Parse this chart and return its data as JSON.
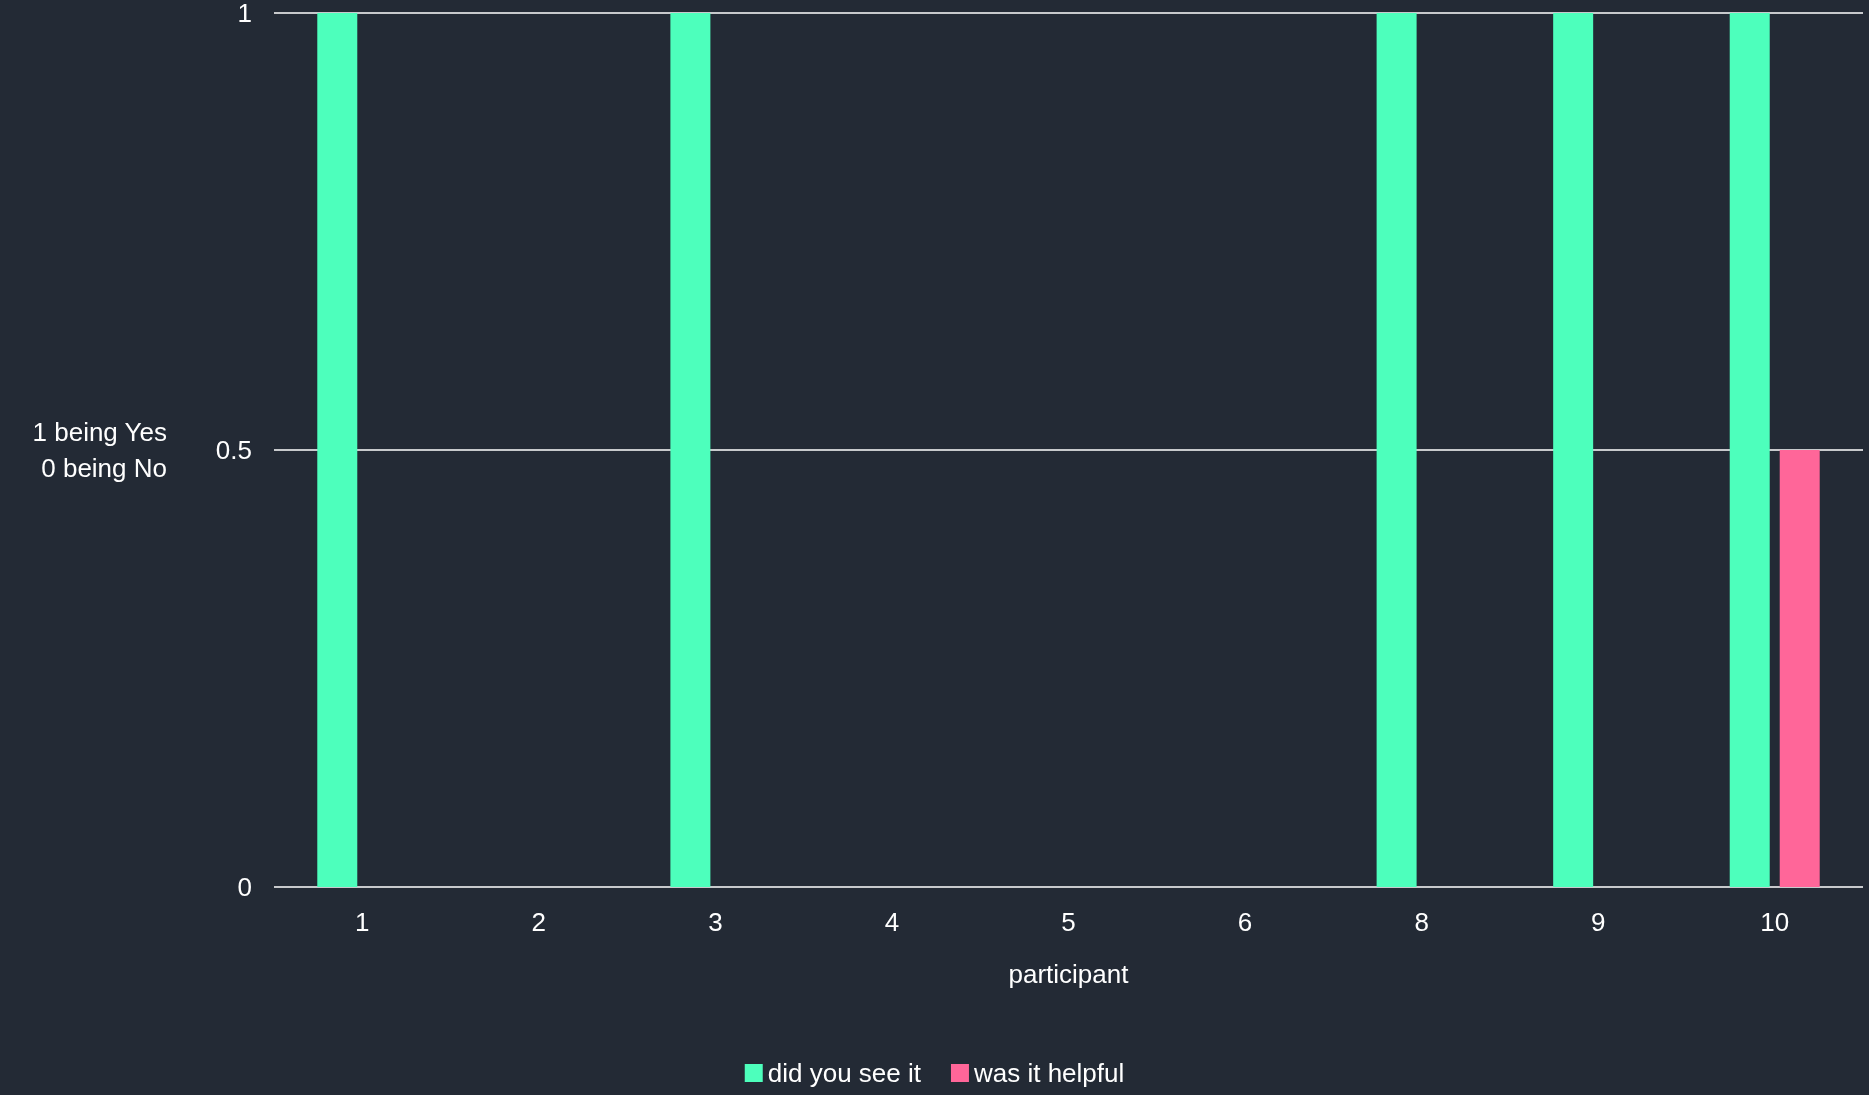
{
  "chart_data": {
    "type": "bar",
    "xlabel": "participant",
    "ylabel": "1 being Yes\n0 being No",
    "categories": [
      "1",
      "2",
      "3",
      "4",
      "5",
      "6",
      "8",
      "9",
      "10"
    ],
    "series": [
      {
        "name": "did you see it",
        "color": "#4dffbc",
        "values": [
          1,
          0,
          1,
          0,
          0,
          0,
          1,
          1,
          1
        ]
      },
      {
        "name": "was it helpful",
        "color": "#ff6699",
        "values": [
          0,
          0,
          0,
          0,
          0,
          0,
          0,
          0,
          0.5
        ]
      }
    ],
    "ylim": [
      0,
      1
    ],
    "yticks": [
      0,
      0.5,
      1
    ],
    "grid": "y",
    "legend": "bottom"
  }
}
